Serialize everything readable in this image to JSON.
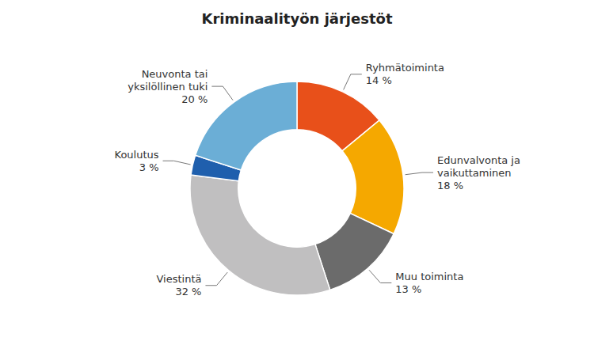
{
  "chart_data": {
    "type": "pie",
    "title": "Kriminaalityön järjestöt",
    "categories": [
      "Ryhmätoiminta",
      "Edunvalvonta ja\nvaikuttaminen",
      "Muu toiminta",
      "Viestintä",
      "Koulutus",
      "Neuvonta tai\nyksilöllinen tuki"
    ],
    "values": [
      14,
      18,
      13,
      32,
      3,
      20
    ],
    "value_labels": [
      "14 %",
      "18 %",
      "13 %",
      "32 %",
      "3 %",
      "20 %"
    ],
    "colors": [
      "#E8501A",
      "#F5A800",
      "#6B6B6B",
      "#C0BFC0",
      "#1F5FAD",
      "#6BAED6"
    ],
    "data_labels": true
  }
}
